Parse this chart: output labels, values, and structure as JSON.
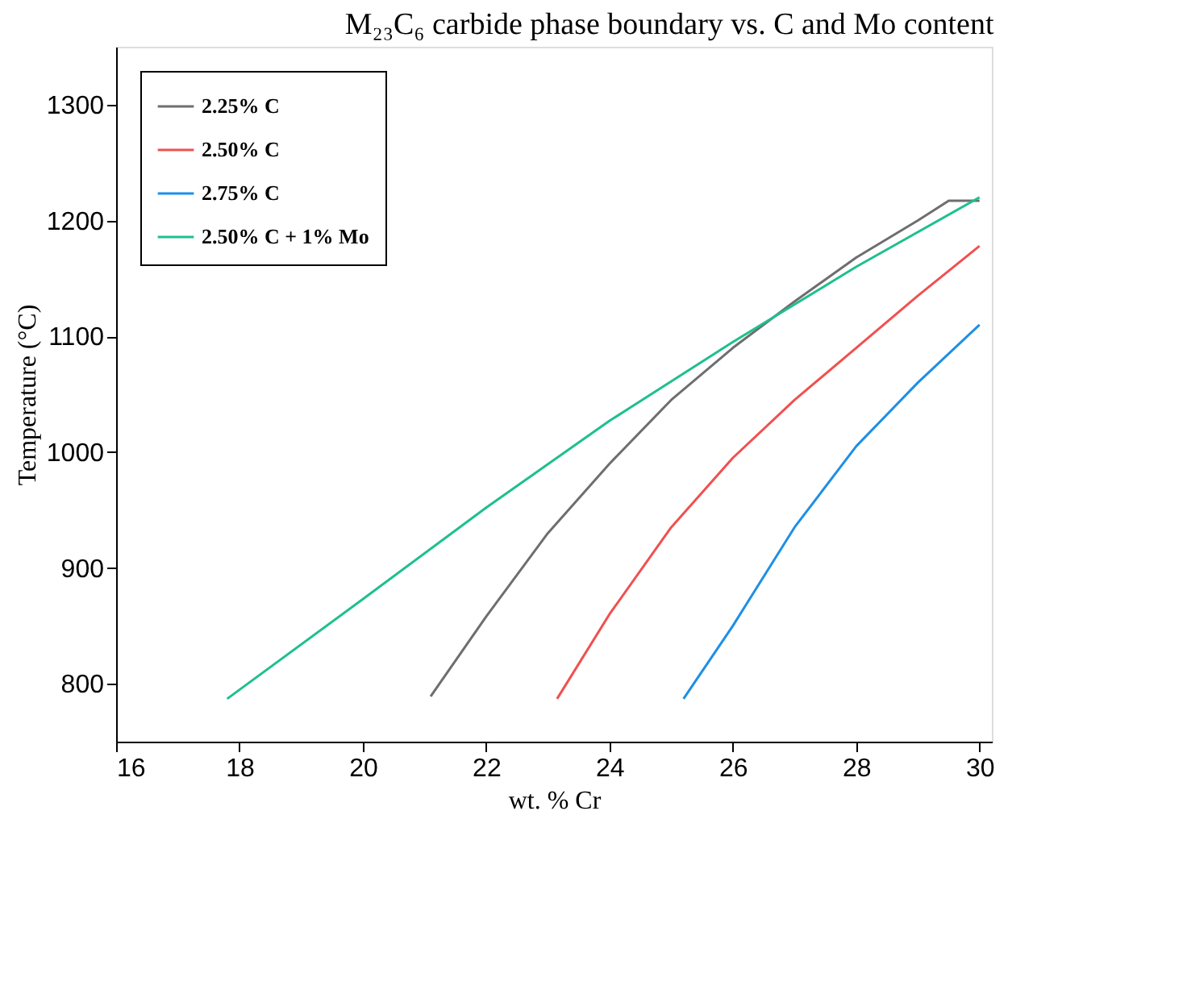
{
  "chart_data": {
    "type": "line",
    "title": "M₂₃C₆ carbide phase boundary vs. C and Mo content",
    "xlabel": "wt. % Cr",
    "ylabel": "Temperature (°C)",
    "xlim": [
      16,
      30.2
    ],
    "ylim": [
      750,
      1350
    ],
    "xticks": [
      16,
      18,
      20,
      22,
      24,
      26,
      28,
      30
    ],
    "yticks": [
      800,
      900,
      1000,
      1100,
      1200,
      1300
    ],
    "grid": false,
    "legend": "top left",
    "marker": "none",
    "line_style": "solid",
    "series": [
      {
        "name": "2.25% C",
        "color": "#6e6e6e",
        "x": [
          21.1,
          22,
          23,
          24,
          25,
          26,
          27,
          28,
          29,
          29.5,
          30
        ],
        "values": [
          789,
          858,
          930,
          990,
          1045,
          1090,
          1130,
          1168,
          1200,
          1217,
          1217
        ]
      },
      {
        "name": "2.50% C",
        "color": "#f0504f",
        "x": [
          23.15,
          24,
          25,
          26,
          27,
          28,
          29,
          30
        ],
        "values": [
          787,
          860,
          935,
          995,
          1045,
          1090,
          1135,
          1178
        ]
      },
      {
        "name": "2.75% C",
        "color": "#1e8fe6",
        "x": [
          25.2,
          26,
          27,
          28,
          29,
          30
        ],
        "values": [
          787,
          850,
          935,
          1005,
          1060,
          1110
        ]
      },
      {
        "name": "2.50% C + 1% Mo",
        "color": "#1fbf8f",
        "x": [
          17.8,
          20,
          22,
          24,
          26,
          28,
          30
        ],
        "values": [
          787,
          873,
          952,
          1027,
          1095,
          1160,
          1220
        ]
      }
    ]
  }
}
